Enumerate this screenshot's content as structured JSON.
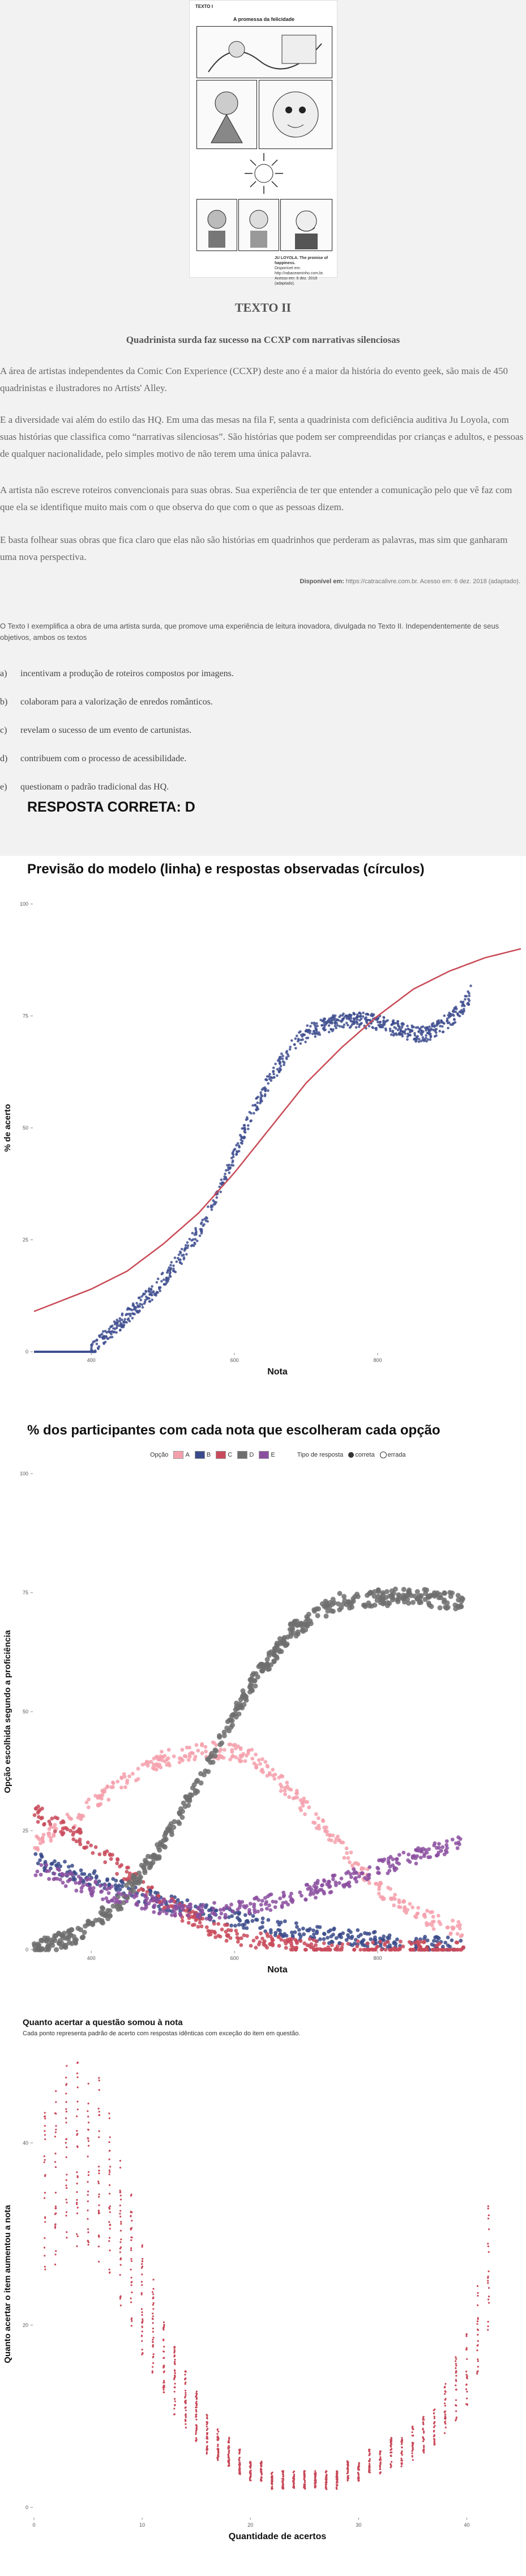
{
  "comic": {
    "header": "TEXTO I",
    "title": "A promessa da felicidade",
    "credit_author": "JU LOYOLA. The promise of happiness.",
    "credit_source": "Disponível em: http://rabaceaminho.com.br. Acesso em: 6 dez. 2018 (adaptado)."
  },
  "text2": {
    "heading": "TEXTO II",
    "subtitle": "Quadrinista surda faz sucesso na CCXP com narrativas silenciosas",
    "paragraphs": [
      "A área de artistas independentes da Comic Con Experience (CCXP) deste ano é a maior da história do evento geek, são mais de 450 quadrinistas e ilustradores no Artists' Alley.",
      "E a diversidade vai além do estilo das HQ. Em uma das mesas na fila F, senta a quadrinista com deficiência auditiva Ju Loyola, com suas histórias que classifica como “narrativas silenciosas”. São histórias que podem ser compreendidas por crianças e adultos, e pessoas de qualquer nacionalidade, pelo simples motivo de não terem uma única palavra.",
      "A artista não escreve roteiros convencionais para suas obras. Sua experiência de ter que entender a comunicação pelo que vê faz com que ela se identifique muito mais com o que observa do que com o que as pessoas dizem.",
      "E basta folhear suas obras que fica claro que elas não são histórias em quadrinhos que perderam as palavras, mas sim que ganharam uma nova perspectiva."
    ],
    "source_label": "Disponível em:",
    "source_text": " https://catracalivre.com.br. Acesso em: 6 dez. 2018 (adaptado)."
  },
  "question": {
    "statement": "O Texto I exemplifica a obra de uma artista surda, que promove uma experiência de leitura inovadora, divulgada no Texto II. Independentemente de seus objetivos, ambos os textos",
    "options": [
      {
        "letter": "a)",
        "text": "incentivam a produção de roteiros compostos por imagens."
      },
      {
        "letter": "b)",
        "text": "colaboram para a valorização de enredos românticos."
      },
      {
        "letter": "c)",
        "text": "revelam o sucesso de um evento de cartunistas."
      },
      {
        "letter": "d)",
        "text": "contribuem com o processo de acessibilidade."
      },
      {
        "letter": "e)",
        "text": "questionam o padrão tradicional das HQ."
      }
    ],
    "answer": "RESPOSTA CORRETA: D"
  },
  "colors": {
    "model_line": "#c94a56",
    "observed": "#3f4f8f",
    "A": "#f4a0ac",
    "B": "#3a4a8a",
    "C": "#c94a5a",
    "D": "#6e6e6e",
    "E": "#8b4fa0"
  },
  "chart_data": [
    {
      "type": "scatter",
      "title": "Previsão do modelo (linha) e respostas observadas (círculos)",
      "xlabel": "Nota",
      "ylabel": "% de acerto",
      "xticks": [
        "400",
        "600",
        "800"
      ],
      "xtick_values": [
        400,
        600,
        800
      ],
      "yticks": [
        "0",
        "25",
        "50",
        "75",
        "100"
      ],
      "xlim": [
        320,
        1000
      ],
      "ylim": [
        0,
        100
      ],
      "grid": false,
      "series": [
        {
          "role": "model",
          "x": [
            320,
            400,
            450,
            500,
            550,
            600,
            650,
            700,
            750,
            800,
            850,
            900,
            950,
            1000
          ],
          "y": [
            9,
            14,
            18,
            24,
            31,
            40,
            50,
            60,
            68,
            75,
            81,
            85,
            88,
            90
          ]
        },
        {
          "role": "observed",
          "x": [
            320,
            400,
            410,
            430,
            450,
            470,
            490,
            510,
            530,
            550,
            570,
            590,
            610,
            630,
            650,
            670,
            690,
            710,
            730,
            750,
            770,
            790,
            810,
            830,
            850,
            870,
            880,
            900,
            920,
            930
          ],
          "y": [
            0,
            0,
            2,
            5,
            8,
            11,
            14,
            18,
            22,
            27,
            33,
            40,
            48,
            55,
            61,
            66,
            70,
            72,
            73,
            74,
            74,
            74,
            73,
            72,
            71,
            71,
            72,
            74,
            77,
            80
          ]
        }
      ]
    },
    {
      "type": "scatter",
      "title": "% dos participantes com cada nota que escolheram cada opção",
      "xlabel": "Nota",
      "ylabel": "Opção escolhida segundo a proficiência",
      "legend_option_label": "Opção",
      "legend_type_label": "Tipo de resposta",
      "legend_type_entries": [
        "correta",
        "errada"
      ],
      "xticks": [
        "400",
        "600",
        "800"
      ],
      "xtick_values": [
        400,
        600,
        800
      ],
      "yticks": [
        "0",
        "25",
        "50",
        "75",
        "100"
      ],
      "xlim": [
        320,
        1000
      ],
      "ylim": [
        0,
        100
      ],
      "grid": false,
      "series": [
        {
          "name": "A",
          "x": [
            320,
            380,
            440,
            500,
            560,
            620,
            680,
            740,
            800,
            860,
            920
          ],
          "y": [
            22,
            28,
            35,
            40,
            42,
            41,
            33,
            23,
            13,
            7,
            4
          ]
        },
        {
          "name": "B",
          "x": [
            320,
            380,
            440,
            500,
            560,
            620,
            680,
            740,
            800,
            860,
            920
          ],
          "y": [
            19,
            16,
            13,
            10,
            8,
            6,
            4,
            3,
            2,
            1,
            1
          ]
        },
        {
          "name": "C",
          "x": [
            320,
            380,
            440,
            500,
            560,
            620,
            680,
            740,
            800,
            860,
            920
          ],
          "y": [
            29,
            24,
            17,
            10,
            5,
            2,
            1,
            0,
            0,
            0,
            0
          ]
        },
        {
          "name": "D",
          "x": [
            320,
            380,
            440,
            500,
            560,
            620,
            680,
            740,
            800,
            860,
            920
          ],
          "y": [
            0,
            3,
            10,
            22,
            38,
            55,
            67,
            73,
            74,
            74,
            73
          ]
        },
        {
          "name": "E",
          "x": [
            320,
            380,
            440,
            500,
            560,
            620,
            680,
            740,
            800,
            860,
            920
          ],
          "y": [
            17,
            14,
            11,
            9,
            8,
            9,
            11,
            14,
            17,
            20,
            23
          ]
        }
      ]
    },
    {
      "type": "scatter",
      "title": "Quanto acertar a questão somou à nota",
      "subtitle": "Cada ponto representa padrão de acerto com respostas idênticas com exceção do item em questão.",
      "xlabel": "Quantidade de acertos",
      "ylabel": "Quanto acertar o item aumentou a nota",
      "xticks": [
        "0",
        "10",
        "20",
        "30",
        "40"
      ],
      "xtick_values": [
        0,
        10,
        20,
        30,
        40
      ],
      "yticks": [
        "0",
        "20",
        "40"
      ],
      "ytick_values": [
        0,
        20,
        40
      ],
      "xlim": [
        0,
        45
      ],
      "ylim": [
        -1,
        50
      ],
      "grid": false,
      "series": [
        {
          "name": "acertos",
          "x": [
            1,
            2,
            3,
            4,
            5,
            6,
            7,
            8,
            9,
            10,
            11,
            12,
            13,
            14,
            15,
            16,
            17,
            18,
            19,
            20,
            21,
            22,
            23,
            24,
            25,
            26,
            27,
            28,
            29,
            30,
            31,
            32,
            33,
            34,
            35,
            36,
            37,
            38,
            39,
            40,
            41,
            42
          ],
          "y": [
            35,
            36,
            38,
            39,
            38,
            37,
            34,
            30,
            27,
            23,
            20,
            17,
            14,
            12,
            10,
            8,
            7,
            6,
            5,
            4,
            4,
            3,
            3,
            3,
            3,
            3,
            3,
            3,
            4,
            4,
            5,
            5,
            6,
            6,
            7,
            8,
            9,
            11,
            13,
            15,
            20,
            26
          ]
        }
      ]
    }
  ]
}
